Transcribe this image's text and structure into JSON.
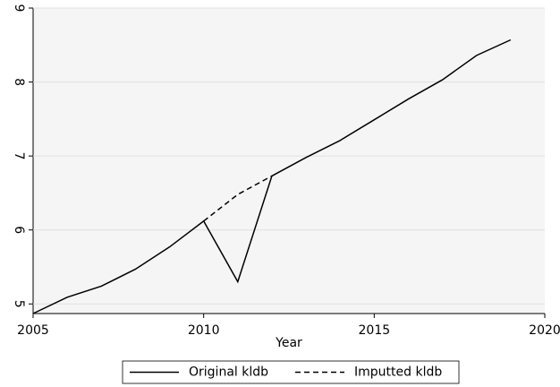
{
  "chart_data": {
    "type": "line",
    "x_label": "Year",
    "x": [
      2005,
      2006,
      2007,
      2008,
      2009,
      2010,
      2011,
      2012,
      2013,
      2014,
      2015,
      2016,
      2017,
      2018,
      2019
    ],
    "series": [
      {
        "name": "Original kldb",
        "color": "#000000",
        "dash": "solid",
        "values": [
          4.87,
          5.09,
          5.24,
          5.47,
          5.77,
          6.12,
          5.3,
          6.73,
          6.98,
          7.21,
          7.49,
          7.77,
          8.03,
          8.36,
          8.57
        ]
      },
      {
        "name": "Imputted kldb",
        "color": "#000000",
        "dash": "dashed",
        "values": [
          null,
          null,
          null,
          null,
          null,
          6.12,
          6.48,
          6.73,
          null,
          null,
          null,
          null,
          null,
          null,
          null
        ]
      }
    ],
    "xlim": [
      2005,
      2020
    ],
    "xticks": [
      2005,
      2010,
      2015,
      2020
    ],
    "ylim": [
      4.87,
      9
    ],
    "yticks": [
      5,
      6,
      7,
      8,
      9
    ],
    "grid": true,
    "legend": "bottom"
  }
}
